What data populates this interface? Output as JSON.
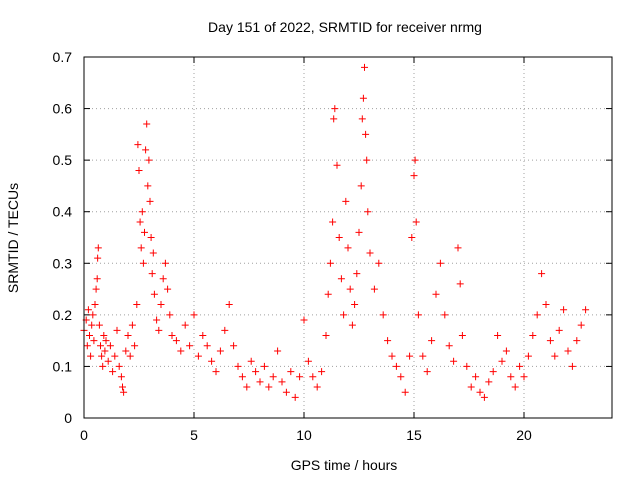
{
  "chart_data": {
    "type": "scatter",
    "title": "Day 151 of 2022, SRMTID for receiver nrmg",
    "xlabel": "GPS time / hours",
    "ylabel": "SRMTID / TECUs",
    "xlim": [
      0,
      24
    ],
    "ylim": [
      0,
      0.7
    ],
    "xticks": [
      0,
      5,
      10,
      15,
      20
    ],
    "xtick_labels": [
      "0",
      "5",
      "10",
      "15",
      "20"
    ],
    "yticks": [
      0,
      0.1,
      0.2,
      0.3,
      0.4,
      0.5,
      0.6,
      0.7
    ],
    "ytick_labels": [
      "0",
      "0.1",
      "0.2",
      "0.3",
      "0.4",
      "0.5",
      "0.6",
      "0.7"
    ],
    "grid": true,
    "marker": "+",
    "color": "#ff0000",
    "series": [
      {
        "name": "SRMTID",
        "points": [
          [
            0.0,
            0.17
          ],
          [
            0.1,
            0.19
          ],
          [
            0.15,
            0.14
          ],
          [
            0.2,
            0.21
          ],
          [
            0.25,
            0.16
          ],
          [
            0.3,
            0.12
          ],
          [
            0.35,
            0.18
          ],
          [
            0.4,
            0.2
          ],
          [
            0.45,
            0.15
          ],
          [
            0.5,
            0.22
          ],
          [
            0.55,
            0.25
          ],
          [
            0.6,
            0.27
          ],
          [
            0.62,
            0.31
          ],
          [
            0.65,
            0.33
          ],
          [
            0.7,
            0.18
          ],
          [
            0.75,
            0.14
          ],
          [
            0.8,
            0.12
          ],
          [
            0.85,
            0.1
          ],
          [
            0.9,
            0.16
          ],
          [
            0.95,
            0.13
          ],
          [
            1.0,
            0.15
          ],
          [
            1.1,
            0.11
          ],
          [
            1.2,
            0.14
          ],
          [
            1.3,
            0.09
          ],
          [
            1.4,
            0.12
          ],
          [
            1.5,
            0.17
          ],
          [
            1.6,
            0.1
          ],
          [
            1.7,
            0.08
          ],
          [
            1.75,
            0.06
          ],
          [
            1.8,
            0.05
          ],
          [
            1.9,
            0.13
          ],
          [
            2.0,
            0.16
          ],
          [
            2.1,
            0.12
          ],
          [
            2.2,
            0.18
          ],
          [
            2.3,
            0.14
          ],
          [
            2.4,
            0.22
          ],
          [
            2.45,
            0.53
          ],
          [
            2.5,
            0.48
          ],
          [
            2.55,
            0.38
          ],
          [
            2.6,
            0.33
          ],
          [
            2.65,
            0.4
          ],
          [
            2.7,
            0.3
          ],
          [
            2.75,
            0.36
          ],
          [
            2.8,
            0.52
          ],
          [
            2.85,
            0.57
          ],
          [
            2.9,
            0.45
          ],
          [
            2.95,
            0.5
          ],
          [
            3.0,
            0.42
          ],
          [
            3.05,
            0.35
          ],
          [
            3.1,
            0.28
          ],
          [
            3.15,
            0.32
          ],
          [
            3.2,
            0.24
          ],
          [
            3.3,
            0.19
          ],
          [
            3.4,
            0.17
          ],
          [
            3.5,
            0.22
          ],
          [
            3.6,
            0.27
          ],
          [
            3.7,
            0.3
          ],
          [
            3.8,
            0.25
          ],
          [
            3.9,
            0.2
          ],
          [
            4.0,
            0.16
          ],
          [
            4.2,
            0.15
          ],
          [
            4.4,
            0.13
          ],
          [
            4.6,
            0.18
          ],
          [
            4.8,
            0.14
          ],
          [
            5.0,
            0.2
          ],
          [
            5.2,
            0.12
          ],
          [
            5.4,
            0.16
          ],
          [
            5.6,
            0.14
          ],
          [
            5.8,
            0.11
          ],
          [
            6.0,
            0.09
          ],
          [
            6.2,
            0.13
          ],
          [
            6.4,
            0.17
          ],
          [
            6.6,
            0.22
          ],
          [
            6.8,
            0.14
          ],
          [
            7.0,
            0.1
          ],
          [
            7.2,
            0.08
          ],
          [
            7.4,
            0.06
          ],
          [
            7.6,
            0.11
          ],
          [
            7.8,
            0.09
          ],
          [
            8.0,
            0.07
          ],
          [
            8.2,
            0.1
          ],
          [
            8.4,
            0.06
          ],
          [
            8.6,
            0.08
          ],
          [
            8.8,
            0.13
          ],
          [
            9.0,
            0.07
          ],
          [
            9.2,
            0.05
          ],
          [
            9.4,
            0.09
          ],
          [
            9.6,
            0.04
          ],
          [
            9.8,
            0.08
          ],
          [
            10.0,
            0.19
          ],
          [
            10.2,
            0.11
          ],
          [
            10.4,
            0.08
          ],
          [
            10.6,
            0.06
          ],
          [
            10.8,
            0.09
          ],
          [
            11.0,
            0.16
          ],
          [
            11.1,
            0.24
          ],
          [
            11.2,
            0.3
          ],
          [
            11.3,
            0.38
          ],
          [
            11.35,
            0.58
          ],
          [
            11.4,
            0.6
          ],
          [
            11.5,
            0.49
          ],
          [
            11.6,
            0.35
          ],
          [
            11.7,
            0.27
          ],
          [
            11.8,
            0.2
          ],
          [
            11.9,
            0.42
          ],
          [
            12.0,
            0.33
          ],
          [
            12.1,
            0.25
          ],
          [
            12.2,
            0.18
          ],
          [
            12.3,
            0.22
          ],
          [
            12.4,
            0.28
          ],
          [
            12.5,
            0.36
          ],
          [
            12.6,
            0.45
          ],
          [
            12.65,
            0.58
          ],
          [
            12.7,
            0.62
          ],
          [
            12.75,
            0.68
          ],
          [
            12.8,
            0.55
          ],
          [
            12.85,
            0.5
          ],
          [
            12.9,
            0.4
          ],
          [
            13.0,
            0.32
          ],
          [
            13.2,
            0.25
          ],
          [
            13.4,
            0.3
          ],
          [
            13.6,
            0.2
          ],
          [
            13.8,
            0.15
          ],
          [
            14.0,
            0.12
          ],
          [
            14.2,
            0.1
          ],
          [
            14.4,
            0.08
          ],
          [
            14.6,
            0.05
          ],
          [
            14.8,
            0.12
          ],
          [
            14.9,
            0.35
          ],
          [
            15.0,
            0.47
          ],
          [
            15.05,
            0.5
          ],
          [
            15.1,
            0.38
          ],
          [
            15.2,
            0.2
          ],
          [
            15.4,
            0.12
          ],
          [
            15.6,
            0.09
          ],
          [
            15.8,
            0.15
          ],
          [
            16.0,
            0.24
          ],
          [
            16.2,
            0.3
          ],
          [
            16.4,
            0.2
          ],
          [
            16.6,
            0.14
          ],
          [
            16.8,
            0.11
          ],
          [
            17.0,
            0.33
          ],
          [
            17.1,
            0.26
          ],
          [
            17.2,
            0.16
          ],
          [
            17.4,
            0.1
          ],
          [
            17.6,
            0.06
          ],
          [
            17.8,
            0.08
          ],
          [
            18.0,
            0.05
          ],
          [
            18.2,
            0.04
          ],
          [
            18.4,
            0.07
          ],
          [
            18.6,
            0.09
          ],
          [
            18.8,
            0.16
          ],
          [
            19.0,
            0.11
          ],
          [
            19.2,
            0.13
          ],
          [
            19.4,
            0.08
          ],
          [
            19.6,
            0.06
          ],
          [
            19.8,
            0.1
          ],
          [
            20.0,
            0.08
          ],
          [
            20.2,
            0.12
          ],
          [
            20.4,
            0.16
          ],
          [
            20.6,
            0.2
          ],
          [
            20.8,
            0.28
          ],
          [
            21.0,
            0.22
          ],
          [
            21.2,
            0.15
          ],
          [
            21.4,
            0.12
          ],
          [
            21.6,
            0.17
          ],
          [
            21.8,
            0.21
          ],
          [
            22.0,
            0.13
          ],
          [
            22.2,
            0.1
          ],
          [
            22.4,
            0.15
          ],
          [
            22.6,
            0.18
          ],
          [
            22.8,
            0.21
          ]
        ]
      }
    ]
  }
}
